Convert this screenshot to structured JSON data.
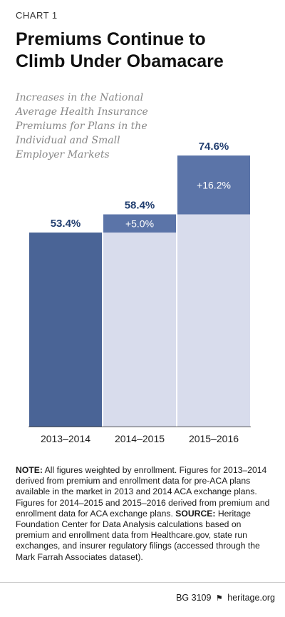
{
  "header": {
    "chart_label": "CHART 1",
    "title_line1": "Premiums Continue to",
    "title_line2": "Climb Under Obamacare",
    "subtitle": "Increases in the National Average Health Insurance Premiums for Plans in the Individual and Small Employer Markets"
  },
  "chart_data": {
    "type": "bar",
    "categories": [
      "2013–2014",
      "2014–2015",
      "2015–2016"
    ],
    "values": [
      53.4,
      58.4,
      74.6
    ],
    "value_labels": [
      "53.4%",
      "58.4%",
      "74.6%"
    ],
    "increments": [
      null,
      5.0,
      16.2
    ],
    "increment_labels": [
      "",
      "+5.0%",
      "+16.2%"
    ],
    "ylim": [
      0,
      80
    ],
    "grid": false,
    "colors": {
      "base": "#4a6496",
      "carryover": "#d8dcec",
      "increment": "#5b74a8",
      "label": "#1f3c6e"
    }
  },
  "notes": {
    "note_label": "NOTE:",
    "note_text": " All figures weighted by enrollment. Figures for 2013–2014 derived from premium and enrollment data for pre-ACA plans available in the market in 2013 and 2014 ACA exchange plans. Figures for 2014–2015 and 2015–2016 derived from premium and enrollment data for ACA exchange plans.",
    "source_label": "SOURCE:",
    "source_text": " Heritage Foundation Center for Data Analysis calculations based on premium and enrollment data from Healthcare.gov, state run exchanges, and insurer regulatory filings (accessed through the Mark Farrah Associates dataset)."
  },
  "footer": {
    "report_id": "BG 3109",
    "site": "heritage.org"
  }
}
